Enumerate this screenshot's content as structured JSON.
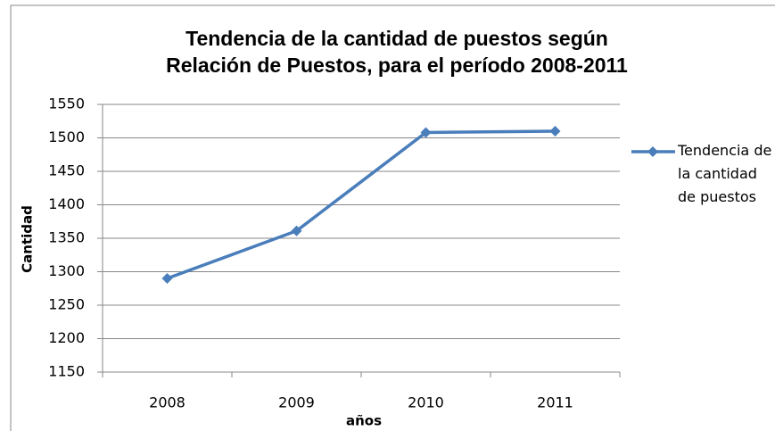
{
  "chart_data": {
    "type": "line",
    "title": [
      "Tendencia de la cantidad de puestos según",
      "Relación de Puestos, para el período 2008-2011"
    ],
    "x_label": "años",
    "y_label": "Cantidad",
    "categories": [
      "2008",
      "2009",
      "2010",
      "2011"
    ],
    "series": [
      {
        "name": "Tendencia de la cantidad de puestos",
        "color": "#4a7ebb",
        "values": [
          1290,
          1361,
          1508,
          1510
        ]
      }
    ],
    "ylim": [
      1150,
      1550
    ],
    "yticks": [
      1150,
      1200,
      1250,
      1300,
      1350,
      1400,
      1450,
      1500,
      1550
    ],
    "grid": true,
    "legend": "right"
  }
}
